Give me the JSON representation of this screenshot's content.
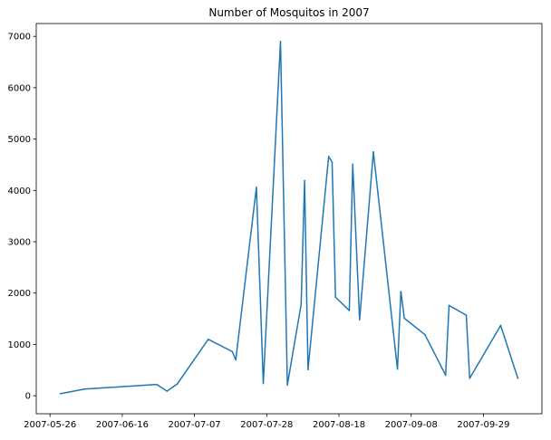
{
  "chart_data": {
    "type": "line",
    "title": "Number of Mosquitos in 2007",
    "xlabel": "",
    "ylabel": "",
    "xlim": [
      "2007-05-22",
      "2007-10-16"
    ],
    "ylim": [
      -350,
      7250
    ],
    "x_ticks": [
      "2007-05-26",
      "2007-06-16",
      "2007-07-07",
      "2007-07-28",
      "2007-08-18",
      "2007-09-08",
      "2007-09-29"
    ],
    "y_ticks": [
      0,
      1000,
      2000,
      3000,
      4000,
      5000,
      6000,
      7000
    ],
    "grid": false,
    "color": "#1f77b4",
    "series": [
      {
        "x": [
          "2007-05-29",
          "2007-06-05",
          "2007-06-26",
          "2007-06-29",
          "2007-07-02",
          "2007-07-11",
          "2007-07-18",
          "2007-07-19",
          "2007-07-25",
          "2007-07-27",
          "2007-08-01",
          "2007-08-03",
          "2007-08-07",
          "2007-08-08",
          "2007-08-09",
          "2007-08-15",
          "2007-08-16",
          "2007-08-17",
          "2007-08-21",
          "2007-08-22",
          "2007-08-24",
          "2007-08-28",
          "2007-09-04",
          "2007-09-05",
          "2007-09-06",
          "2007-09-12",
          "2007-09-18",
          "2007-09-19",
          "2007-09-24",
          "2007-09-25",
          "2007-10-04",
          "2007-10-09"
        ],
        "y": [
          40,
          130,
          220,
          90,
          230,
          1100,
          860,
          700,
          4060,
          240,
          6900,
          210,
          1780,
          4190,
          510,
          4660,
          4550,
          1920,
          1660,
          4510,
          1480,
          4750,
          520,
          2030,
          1510,
          1190,
          400,
          1760,
          1570,
          340,
          1370,
          340
        ]
      }
    ]
  }
}
